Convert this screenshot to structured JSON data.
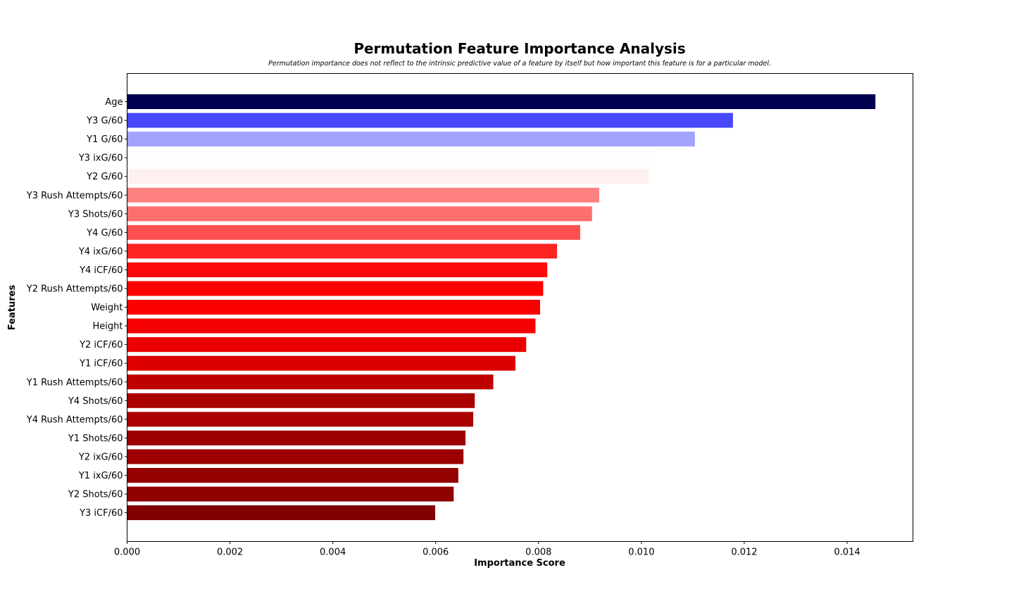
{
  "chart_data": {
    "type": "bar",
    "orientation": "horizontal",
    "title": "Permutation Feature Importance Analysis",
    "subtitle": "Permutation importance does not reflect to the intrinsic predictive value of a feature by itself but how important this feature is for a particular model.",
    "xlabel": "Importance Score",
    "ylabel": "Features",
    "xlim": [
      0,
      0.01528
    ],
    "xticks": [
      "0.000",
      "0.002",
      "0.004",
      "0.006",
      "0.008",
      "0.010",
      "0.012",
      "0.014"
    ],
    "grid": false,
    "categories": [
      "Age",
      "Y3 G/60",
      "Y1 G/60",
      "Y3 ixG/60",
      "Y2 G/60",
      "Y3 Rush Attempts/60",
      "Y3 Shots/60",
      "Y4 G/60",
      "Y4 ixG/60",
      "Y4 iCF/60",
      "Y2 Rush Attempts/60",
      "Weight",
      "Height",
      "Y2 iCF/60",
      "Y1 iCF/60",
      "Y1 Rush Attempts/60",
      "Y4 Shots/60",
      "Y4 Rush Attempts/60",
      "Y1 Shots/60",
      "Y2 ixG/60",
      "Y1 ixG/60",
      "Y2 Shots/60",
      "Y3 iCF/60"
    ],
    "values": [
      0.01455,
      0.01178,
      0.01104,
      0.01029,
      0.01014,
      0.00918,
      0.00904,
      0.00881,
      0.00836,
      0.00817,
      0.00809,
      0.00803,
      0.00794,
      0.00776,
      0.00755,
      0.00712,
      0.00676,
      0.00673,
      0.00658,
      0.00654,
      0.00644,
      0.00635,
      0.00599
    ],
    "colors": [
      "#000050",
      "#4848ff",
      "#a2a2ff",
      "#fdfdff",
      "#fff0f0",
      "#ff8080",
      "#ff6e6e",
      "#ff5050",
      "#ff2424",
      "#ff0a0a",
      "#ff0000",
      "#fb0000",
      "#f50000",
      "#ea0000",
      "#dc0000",
      "#bd0000",
      "#aa0000",
      "#aa0000",
      "#9c0000",
      "#9c0000",
      "#950000",
      "#8f0000",
      "#800000"
    ]
  }
}
